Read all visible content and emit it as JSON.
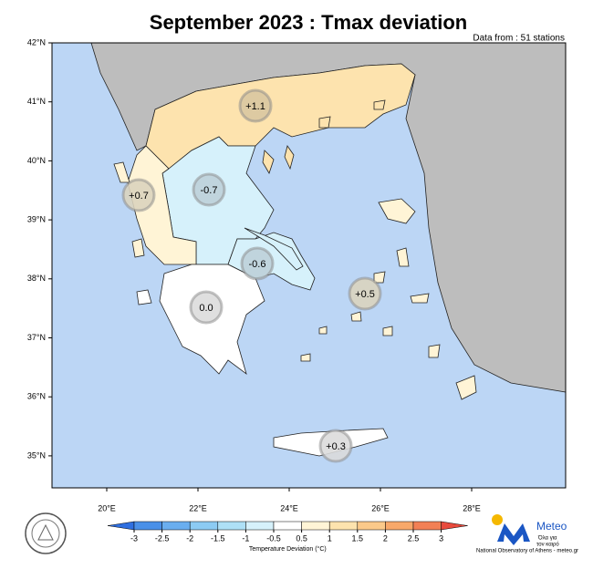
{
  "title": "September 2023 : Tmax deviation",
  "subtitle": "Data from : 51 stations",
  "lat_ticks": [
    {
      "value": 42,
      "label": "42°N"
    },
    {
      "value": 41,
      "label": "41°N"
    },
    {
      "value": 40,
      "label": "40°N"
    },
    {
      "value": 39,
      "label": "39°N"
    },
    {
      "value": 38,
      "label": "38°N"
    },
    {
      "value": 37,
      "label": "37°N"
    },
    {
      "value": 36,
      "label": "36°N"
    },
    {
      "value": 35,
      "label": "35°N"
    }
  ],
  "lon_ticks": [
    {
      "value": 20,
      "label": "20°E"
    },
    {
      "value": 22,
      "label": "22°E"
    },
    {
      "value": 24,
      "label": "24°E"
    },
    {
      "value": 26,
      "label": "26°E"
    },
    {
      "value": 28,
      "label": "28°E"
    }
  ],
  "regions": [
    {
      "value": 1.1,
      "label": "+1.1"
    },
    {
      "value": -0.7,
      "label": "-0.7"
    },
    {
      "value": 0.7,
      "label": "+0.7"
    },
    {
      "value": -0.6,
      "label": "-0.6"
    },
    {
      "value": 0.0,
      "label": "0.0"
    },
    {
      "value": 0.5,
      "label": "+0.5"
    },
    {
      "value": 0.3,
      "label": "+0.3"
    }
  ],
  "colorbar": {
    "ticks": [
      -3,
      -2.5,
      -2,
      -1.5,
      -1,
      -0.5,
      0.5,
      1,
      1.5,
      2,
      2.5,
      3
    ],
    "colors": [
      "#2f6fe0",
      "#4a90e8",
      "#6aaeef",
      "#8ccbf3",
      "#aee0f6",
      "#d6f1fb",
      "#ffffff",
      "#fff4d6",
      "#fde3ae",
      "#fbc98a",
      "#f8a86a",
      "#f28055",
      "#e84a3c"
    ],
    "label": "Temperature Deviation (°C)"
  },
  "logo": {
    "name": "Meteo",
    "tagline_1": "Όλα για",
    "tagline_2": "τον καιρό",
    "credit": "National Observatory of Athens - meteo.gr"
  }
}
